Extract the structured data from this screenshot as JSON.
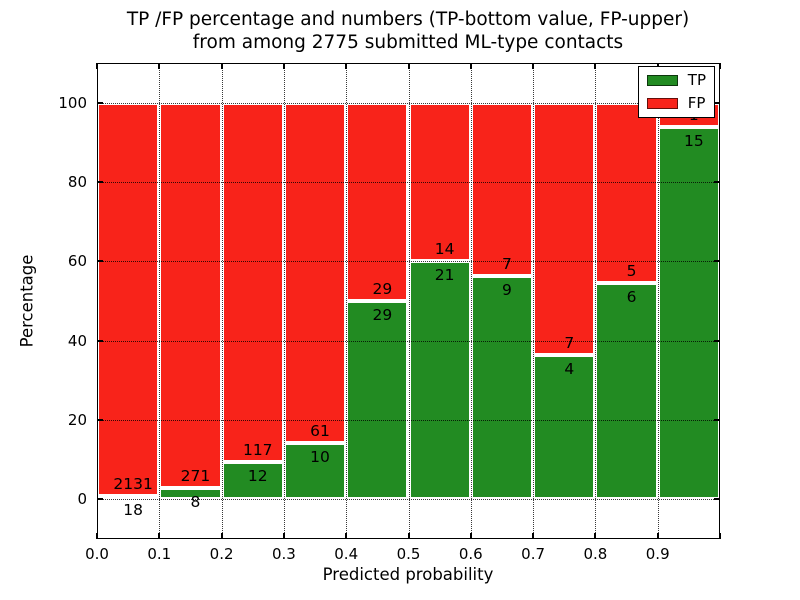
{
  "chart_data": {
    "type": "bar",
    "stacked": true,
    "title_line1": "TP /FP percentage and numbers (TP-bottom value, FP-upper)",
    "title_line2": "from among 2775 submitted ML-type contacts",
    "xlabel": "Predicted probability",
    "ylabel": "Percentage",
    "total_contacts": 2775,
    "bin_edges": [
      0.0,
      0.1,
      0.2,
      0.3,
      0.4,
      0.5,
      0.6,
      0.7,
      0.8,
      0.9,
      1.0
    ],
    "xtick_labels": [
      "0.0",
      "0.1",
      "0.2",
      "0.3",
      "0.4",
      "0.5",
      "0.6",
      "0.7",
      "0.8",
      "0.9"
    ],
    "yticks": [
      0,
      20,
      40,
      60,
      80,
      100
    ],
    "xlim": [
      0,
      1
    ],
    "ylim": [
      -10,
      110
    ],
    "series": [
      {
        "name": "TP",
        "color": "#228b22",
        "counts": [
          18,
          8,
          12,
          10,
          29,
          21,
          9,
          4,
          6,
          15
        ],
        "percent": [
          0.8,
          2.9,
          9.3,
          14.1,
          50.0,
          60.0,
          56.3,
          36.4,
          54.5,
          93.8
        ]
      },
      {
        "name": "FP",
        "color": "#f8231a",
        "counts": [
          2131,
          271,
          117,
          61,
          29,
          14,
          7,
          7,
          5,
          1
        ],
        "percent": [
          99.2,
          97.1,
          90.7,
          85.9,
          50.0,
          40.0,
          43.7,
          63.6,
          45.5,
          6.2
        ]
      }
    ],
    "legend": {
      "position": "upper right",
      "entries": [
        {
          "label": "TP",
          "color": "#228b22"
        },
        {
          "label": "FP",
          "color": "#f8231a"
        }
      ]
    },
    "grid": {
      "linestyle": "dotted",
      "color": "#000000"
    },
    "bar_edge_color": "#ffffff",
    "background_color": "#ffffff"
  }
}
